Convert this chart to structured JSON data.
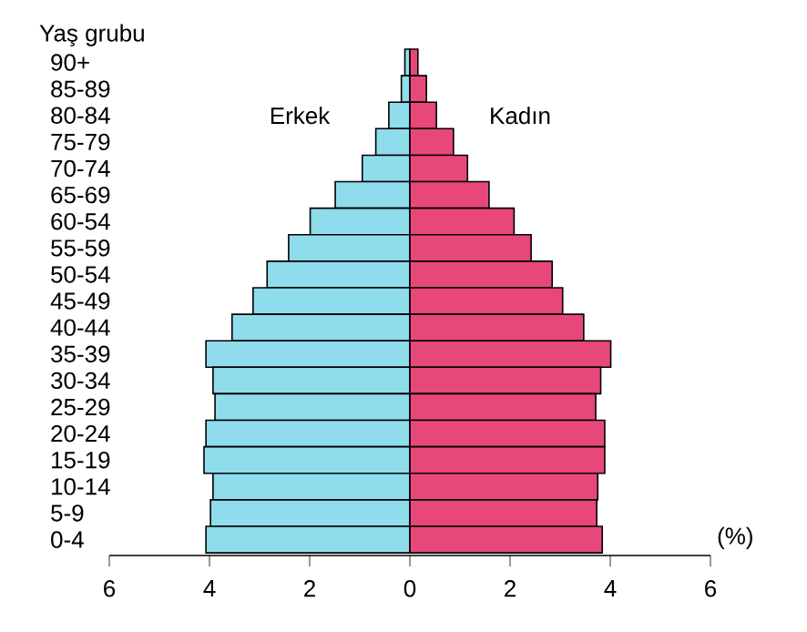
{
  "chart_data": {
    "type": "bar",
    "orientation": "horizontal",
    "stacked": true,
    "xlabel": "(%)",
    "ylabel": "Yaş grubu",
    "categories": [
      "90+",
      "85-89",
      "80-84",
      "75-79",
      "70-74",
      "65-69",
      "60-54",
      "55-59",
      "50-54",
      "45-49",
      "40-44",
      "35-39",
      "30-34",
      "25-29",
      "20-24",
      "15-19",
      "10-14",
      "5-9",
      "0-4"
    ],
    "series": [
      {
        "name": "Erkek",
        "color": "#8fdcec",
        "values": [
          -0.1,
          -0.17,
          -0.42,
          -0.68,
          -0.95,
          -1.49,
          -1.99,
          -2.42,
          -2.85,
          -3.13,
          -3.55,
          -4.07,
          -3.93,
          -3.89,
          -4.07,
          -4.11,
          -3.93,
          -3.98,
          -4.07
        ]
      },
      {
        "name": "Kadın",
        "color": "#e8477a",
        "values": [
          0.16,
          0.33,
          0.53,
          0.87,
          1.15,
          1.58,
          2.08,
          2.42,
          2.84,
          3.05,
          3.47,
          4.01,
          3.81,
          3.71,
          3.89,
          3.89,
          3.75,
          3.73,
          3.84
        ]
      }
    ],
    "xlim": [
      -6,
      6
    ],
    "xticks": [
      {
        "value": -6,
        "label": "6"
      },
      {
        "value": -4,
        "label": "4"
      },
      {
        "value": -2,
        "label": "2"
      },
      0,
      2,
      4,
      6
    ]
  }
}
